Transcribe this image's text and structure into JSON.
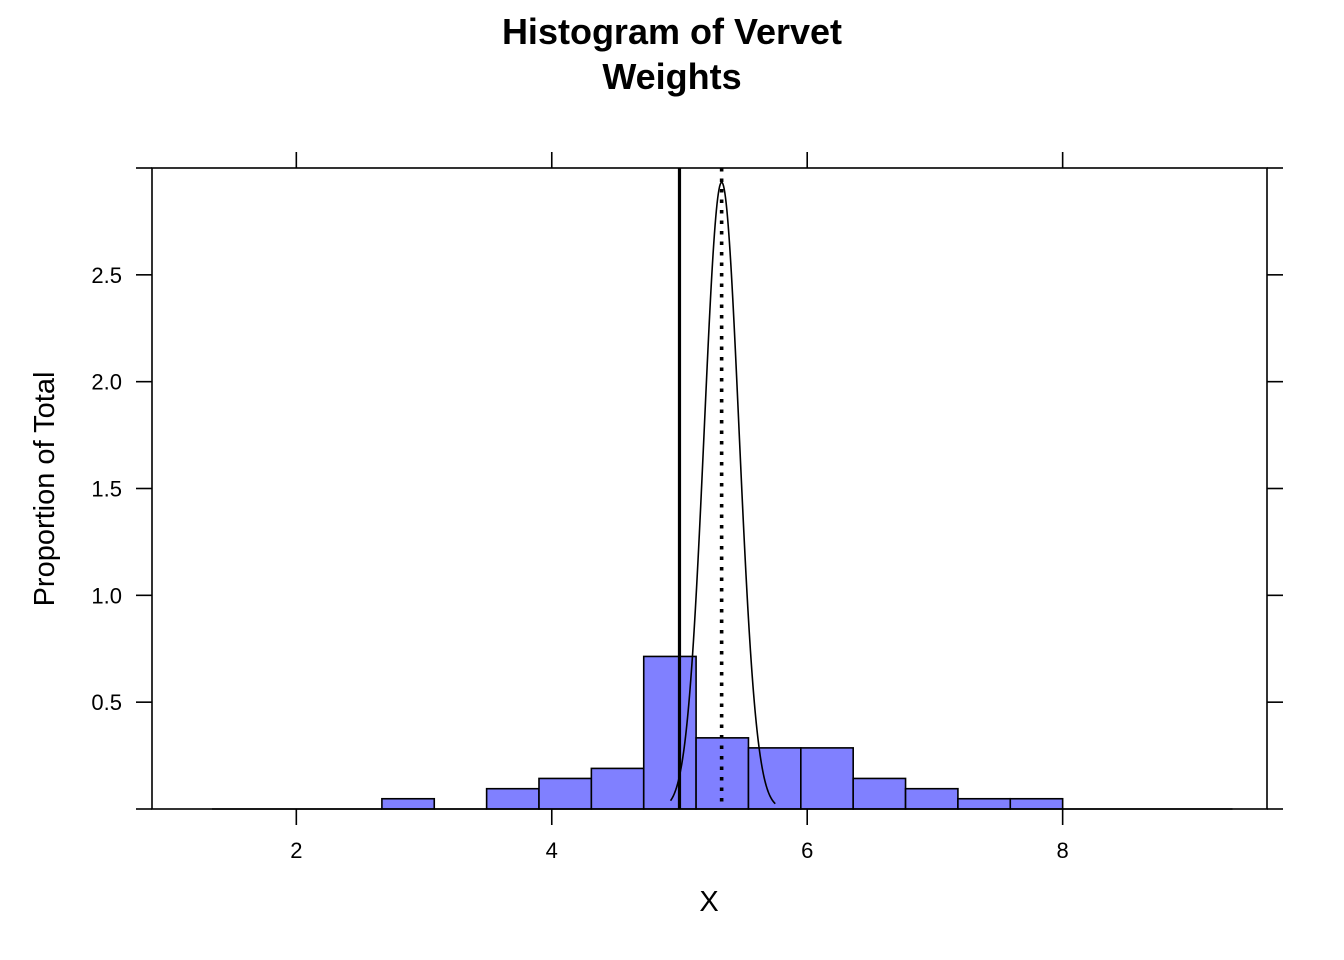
{
  "chart_data": {
    "type": "bar",
    "title_lines": [
      "Histogram of Vervet",
      "Weights"
    ],
    "xlabel": "X",
    "ylabel": "Proportion of Total",
    "xlim": [
      0.87,
      9.6
    ],
    "ylim": [
      0,
      3.0
    ],
    "x_ticks": [
      2,
      4,
      6,
      8
    ],
    "x_tick_labels": [
      "2",
      "4",
      "6",
      "8"
    ],
    "y_ticks": [
      0.5,
      1.0,
      1.5,
      2.0,
      2.5
    ],
    "y_tick_labels": [
      "0.5",
      "1.0",
      "1.5",
      "2.0",
      "2.5"
    ],
    "bins": [
      {
        "x0": 1.34,
        "x1": 1.75,
        "value": 0
      },
      {
        "x0": 1.75,
        "x1": 2.16,
        "value": 0
      },
      {
        "x0": 2.16,
        "x1": 2.67,
        "value": 0
      },
      {
        "x0": 2.67,
        "x1": 3.08,
        "value": 0.048
      },
      {
        "x0": 3.08,
        "x1": 3.49,
        "value": 0
      },
      {
        "x0": 3.49,
        "x1": 3.9,
        "value": 0.095
      },
      {
        "x0": 3.9,
        "x1": 4.31,
        "value": 0.143
      },
      {
        "x0": 4.31,
        "x1": 4.72,
        "value": 0.19
      },
      {
        "x0": 4.72,
        "x1": 5.13,
        "value": 0.714
      },
      {
        "x0": 5.13,
        "x1": 5.54,
        "value": 0.333
      },
      {
        "x0": 5.54,
        "x1": 5.95,
        "value": 0.286
      },
      {
        "x0": 5.95,
        "x1": 6.36,
        "value": 0.286
      },
      {
        "x0": 6.36,
        "x1": 6.77,
        "value": 0.143
      },
      {
        "x0": 6.77,
        "x1": 7.18,
        "value": 0.095
      },
      {
        "x0": 7.18,
        "x1": 7.59,
        "value": 0.048
      },
      {
        "x0": 7.59,
        "x1": 8.0,
        "value": 0.048
      },
      {
        "x0": 8.0,
        "x1": 8.41,
        "value": 0
      },
      {
        "x0": 8.41,
        "x1": 8.82,
        "value": 0
      },
      {
        "x0": 8.82,
        "x1": 9.33,
        "value": 0
      }
    ],
    "reference_lines": {
      "solid_vertical_x": 5.0,
      "dotted_vertical_x": 5.33
    },
    "normal_curve": {
      "mean": 5.33,
      "sd": 0.136,
      "range": [
        4.93,
        5.75
      ]
    },
    "grid": false,
    "legend": "none"
  },
  "colors": {
    "bar_fill": "#8080ff",
    "bar_stroke": "#000000",
    "axis": "#000000",
    "background": "#ffffff"
  }
}
